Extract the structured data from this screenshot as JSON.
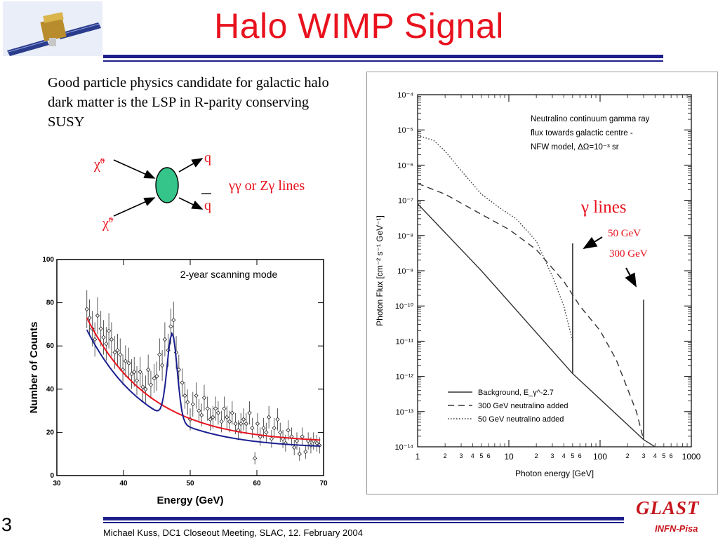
{
  "slide": {
    "title": "Halo WIMP Signal",
    "intro": "Good particle physics candidate for galactic halo dark matter is the LSP in R-parity conserving SUSY",
    "page_number": "3",
    "footer": "Michael Kuss, DC1 Closeout Meeting, SLAC, 12. February 2004",
    "logo_text": "GLAST",
    "logo_sub": "INFN-Pisa"
  },
  "diagram": {
    "in1": "χ̃",
    "in1_sup": "0",
    "in2": "χ̃",
    "in2_sup": "0",
    "out1": "q",
    "out2": "q",
    "lines_label": "γγ or Zγ lines"
  },
  "colors": {
    "title": "#e8121e",
    "rule": "#1d1f8c",
    "vertex": "#35c48a",
    "fit_red": "#e8121e",
    "fit_blue": "#1a1f8f"
  },
  "chart_data": [
    {
      "type": "scatter",
      "annotation": "2-year scanning mode",
      "xlabel": "Energy (GeV)",
      "ylabel": "Number of Counts",
      "xlim": [
        30,
        70
      ],
      "ylim": [
        0,
        100
      ],
      "xticks": [
        "30",
        "40",
        "50",
        "60",
        "70"
      ],
      "yticks": [
        "0",
        "20",
        "40",
        "60",
        "80",
        "100"
      ],
      "points": [
        [
          34.5,
          77
        ],
        [
          34.9,
          73
        ],
        [
          35.3,
          68
        ],
        [
          35.7,
          63
        ],
        [
          36.1,
          74
        ],
        [
          36.6,
          68
        ],
        [
          37.0,
          64
        ],
        [
          37.4,
          61
        ],
        [
          37.8,
          67
        ],
        [
          38.2,
          63
        ],
        [
          38.7,
          57
        ],
        [
          39.1,
          58
        ],
        [
          39.5,
          56
        ],
        [
          39.9,
          49
        ],
        [
          40.3,
          53
        ],
        [
          40.8,
          52
        ],
        [
          41.2,
          47
        ],
        [
          41.6,
          48
        ],
        [
          42.0,
          44
        ],
        [
          42.5,
          48
        ],
        [
          42.9,
          41
        ],
        [
          43.3,
          40
        ],
        [
          43.7,
          49
        ],
        [
          44.1,
          42
        ],
        [
          44.6,
          45
        ],
        [
          45.0,
          46
        ],
        [
          45.4,
          56
        ],
        [
          45.8,
          51
        ],
        [
          46.2,
          63
        ],
        [
          46.7,
          58
        ],
        [
          47.1,
          69
        ],
        [
          47.5,
          72
        ],
        [
          47.9,
          57
        ],
        [
          48.3,
          49
        ],
        [
          48.8,
          43
        ],
        [
          49.2,
          37
        ],
        [
          49.6,
          34
        ],
        [
          50.0,
          26
        ],
        [
          50.4,
          33
        ],
        [
          50.9,
          37
        ],
        [
          51.3,
          30
        ],
        [
          51.7,
          28
        ],
        [
          52.1,
          36
        ],
        [
          52.6,
          31
        ],
        [
          53.0,
          26
        ],
        [
          53.4,
          27
        ],
        [
          53.8,
          31
        ],
        [
          54.2,
          29
        ],
        [
          54.7,
          25
        ],
        [
          55.1,
          31
        ],
        [
          55.5,
          27
        ],
        [
          55.9,
          25
        ],
        [
          56.3,
          29
        ],
        [
          56.8,
          24
        ],
        [
          57.2,
          21
        ],
        [
          57.6,
          24
        ],
        [
          58.0,
          26
        ],
        [
          58.4,
          24
        ],
        [
          58.9,
          29
        ],
        [
          59.3,
          22
        ],
        [
          59.7,
          8
        ],
        [
          60.1,
          24
        ],
        [
          60.5,
          18
        ],
        [
          61.0,
          22
        ],
        [
          61.4,
          20
        ],
        [
          61.8,
          27
        ],
        [
          62.2,
          17
        ],
        [
          62.6,
          22
        ],
        [
          63.1,
          26
        ],
        [
          63.5,
          20
        ],
        [
          63.9,
          17
        ],
        [
          64.3,
          15
        ],
        [
          64.7,
          21
        ],
        [
          65.2,
          18
        ],
        [
          65.6,
          13
        ],
        [
          66.0,
          16
        ],
        [
          66.4,
          10
        ],
        [
          66.8,
          18
        ],
        [
          67.3,
          11
        ],
        [
          67.7,
          16
        ],
        [
          68.1,
          14
        ],
        [
          68.5,
          16
        ],
        [
          69.0,
          15
        ],
        [
          69.4,
          14
        ]
      ],
      "fit_curves": [
        {
          "color": "#e8121e",
          "kind": "background power law"
        },
        {
          "color": "#1a1f8f",
          "kind": "background plus 47 GeV line"
        }
      ]
    },
    {
      "type": "line",
      "annotation_lines": [
        "Neutralino continuum gamma ray",
        "flux towards galactic centre -",
        "NFW model, ΔΩ=10⁻³ sr"
      ],
      "xlabel": "Photon energy [GeV]",
      "ylabel": "Photon Flux [cm⁻² s⁻¹ GeV⁻¹]",
      "x_scale": "log",
      "y_scale": "log",
      "xlim": [
        1,
        1000
      ],
      "ylim": [
        1e-14,
        0.0001
      ],
      "x_major_ticks": [
        "1",
        "10",
        "100",
        "1000"
      ],
      "x_minor_labels": [
        "2",
        "3",
        "4",
        "5",
        "6",
        "2",
        "3",
        "4",
        "5",
        "6",
        "2",
        "3",
        "4",
        "5",
        "6"
      ],
      "y_ticks": [
        "10⁻¹⁴",
        "10⁻¹³",
        "10⁻¹²",
        "10⁻¹¹",
        "10⁻¹⁰",
        "10⁻⁹",
        "10⁻⁸",
        "10⁻⁷",
        "10⁻⁶",
        "10⁻⁵",
        "10⁻⁴"
      ],
      "legend": [
        {
          "name": "Background, E_γ^-2.7",
          "style": "solid"
        },
        {
          "name": "300 GeV neutralino added",
          "style": "dashed"
        },
        {
          "name": "50 GeV neutralino added",
          "style": "dotted"
        }
      ],
      "series": [
        {
          "name": "Background",
          "style": "solid",
          "points": [
            [
              1,
              8e-08
            ],
            [
              5,
              1e-09
            ],
            [
              50,
              1.2e-12
            ],
            [
              300,
              1.6e-14
            ],
            [
              400,
              1e-14
            ]
          ]
        },
        {
          "name": "300 GeV neutralino added",
          "style": "dashed",
          "points": [
            [
              1,
              3e-07
            ],
            [
              2,
              1.5e-07
            ],
            [
              5,
              4e-08
            ],
            [
              10,
              1.5e-08
            ],
            [
              20,
              4e-09
            ],
            [
              40,
              5e-10
            ],
            [
              60,
              1e-10
            ],
            [
              100,
              2e-11
            ],
            [
              150,
              3e-12
            ],
            [
              250,
              1e-13
            ],
            [
              300,
              1.6e-14
            ]
          ]
        },
        {
          "name": "50 GeV neutralino added",
          "style": "dotted",
          "points": [
            [
              1,
              7e-06
            ],
            [
              1.5,
              5e-06
            ],
            [
              2,
              2.5e-06
            ],
            [
              3,
              7e-07
            ],
            [
              5,
              1.5e-07
            ],
            [
              8,
              6e-08
            ],
            [
              12,
              3e-08
            ],
            [
              20,
              7e-09
            ],
            [
              30,
              7e-10
            ],
            [
              40,
              1e-10
            ],
            [
              50,
              1e-11
            ]
          ]
        },
        {
          "name": "line",
          "style": "spike",
          "points": [
            [
              50,
              1.2e-12
            ],
            [
              50,
              6e-09
            ]
          ]
        },
        {
          "name": "line",
          "style": "spike",
          "points": [
            [
              300,
              1.6e-14
            ],
            [
              300,
              1.5e-10
            ]
          ]
        }
      ],
      "callouts": {
        "title": "γ lines",
        "line1": "50 GeV",
        "line2": "300 GeV"
      }
    }
  ]
}
